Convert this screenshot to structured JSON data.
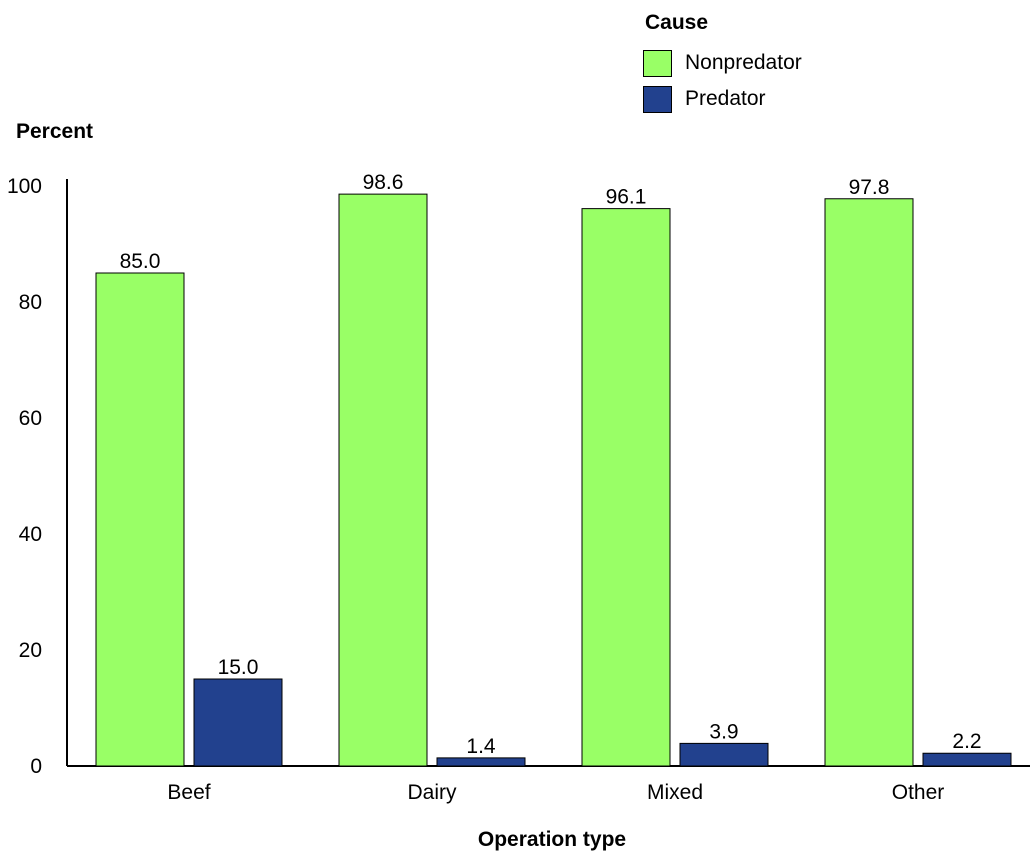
{
  "chart_data": {
    "type": "bar",
    "categories": [
      "Beef",
      "Dairy",
      "Mixed",
      "Other"
    ],
    "series": [
      {
        "name": "Nonpredator",
        "values": [
          85.0,
          98.6,
          96.1,
          97.8
        ],
        "labels": [
          "85.0",
          "98.6",
          "96.1",
          "97.8"
        ],
        "color": "#99ff66"
      },
      {
        "name": "Predator",
        "values": [
          15.0,
          1.4,
          3.9,
          2.2
        ],
        "labels": [
          "15.0",
          "1.4",
          "3.9",
          "2.2"
        ],
        "color": "#22418e"
      }
    ],
    "legend_title": "Cause",
    "legend_position": "top-right",
    "xlabel": "Operation type",
    "ylabel": "Percent",
    "ylim": [
      0,
      100
    ],
    "yticks": [
      "0",
      "20",
      "40",
      "60",
      "80",
      "100"
    ],
    "grid": false
  }
}
